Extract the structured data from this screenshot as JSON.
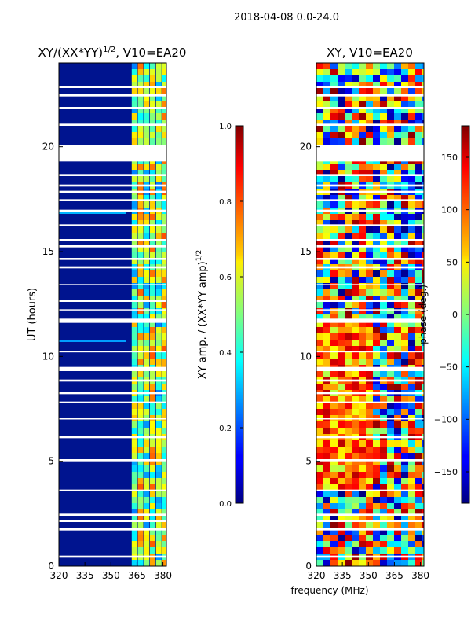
{
  "suptitle": "2018-04-08 0.0-24.0",
  "chart_data": [
    {
      "type": "heatmap",
      "title_main": "XY/(XX*YY)",
      "title_exp": "1/2",
      "title_rest": ", V10=EA20",
      "xlabel": "",
      "ylabel": "UT (hours)",
      "xlim": [
        320,
        382
      ],
      "ylim": [
        0,
        24
      ],
      "xticks": [
        320,
        335,
        350,
        365,
        380
      ],
      "yticks": [
        0,
        5,
        10,
        15,
        20
      ],
      "colormap": "jet",
      "colorbar": {
        "label_main": "XY amp. / (XX*YY amp)",
        "label_exp": "1/2",
        "range": [
          0.0,
          1.0
        ],
        "ticks": [
          0.0,
          0.2,
          0.4,
          0.6,
          0.8,
          1.0
        ],
        "tick_labels": [
          "0.0",
          "0.2",
          "0.4",
          "0.6",
          "0.8",
          "1.0"
        ]
      },
      "flagged_hours": [
        [
          19.3,
          20.1
        ],
        [
          0.4,
          0.5
        ],
        [
          1.7,
          1.8
        ],
        [
          2.1,
          2.2
        ],
        [
          2.4,
          2.5
        ],
        [
          3.6,
          3.65
        ],
        [
          5.0,
          5.1
        ],
        [
          6.1,
          6.2
        ],
        [
          7.0,
          7.05
        ],
        [
          7.8,
          7.85
        ],
        [
          8.2,
          8.3
        ],
        [
          8.8,
          8.9
        ],
        [
          9.3,
          9.5
        ],
        [
          10.2,
          10.25
        ],
        [
          11.6,
          11.8
        ],
        [
          12.2,
          12.25
        ],
        [
          12.6,
          12.7
        ],
        [
          13.4,
          13.45
        ],
        [
          14.2,
          14.3
        ],
        [
          14.6,
          14.7
        ],
        [
          15.2,
          15.3
        ],
        [
          15.5,
          15.6
        ],
        [
          16.2,
          16.3
        ],
        [
          16.9,
          17.0
        ],
        [
          17.4,
          17.5
        ],
        [
          17.8,
          17.9
        ],
        [
          18.1,
          18.2
        ],
        [
          18.6,
          18.7
        ],
        [
          21.0,
          21.1
        ],
        [
          21.8,
          21.9
        ],
        [
          22.4,
          22.5
        ],
        [
          22.8,
          22.9
        ]
      ]
    },
    {
      "type": "heatmap",
      "title": "XY, V10=EA20",
      "xlabel": "frequency (MHz)",
      "ylabel": "",
      "xlim": [
        320,
        382
      ],
      "ylim": [
        0,
        24
      ],
      "xticks": [
        320,
        335,
        350,
        365,
        380
      ],
      "yticks": [
        0,
        5,
        10,
        15,
        20
      ],
      "colormap": "jet",
      "colorbar": {
        "label": "phase (deg.)",
        "range": [
          -180,
          180
        ],
        "ticks": [
          -150,
          -100,
          -50,
          0,
          50,
          100,
          150
        ],
        "tick_labels": [
          "−150",
          "−100",
          "−50",
          "0",
          "50",
          "100",
          "150"
        ]
      },
      "flagged_hours": [
        [
          19.3,
          20.1
        ],
        [
          0.4,
          0.5
        ],
        [
          1.7,
          1.8
        ],
        [
          2.1,
          2.2
        ],
        [
          2.4,
          2.5
        ],
        [
          3.6,
          3.65
        ],
        [
          5.0,
          5.1
        ],
        [
          6.1,
          6.2
        ],
        [
          7.0,
          7.05
        ],
        [
          7.8,
          7.85
        ],
        [
          8.2,
          8.3
        ],
        [
          8.8,
          8.9
        ],
        [
          9.3,
          9.5
        ],
        [
          10.2,
          10.25
        ],
        [
          11.6,
          11.8
        ],
        [
          12.2,
          12.25
        ],
        [
          12.6,
          12.7
        ],
        [
          13.4,
          13.45
        ],
        [
          14.2,
          14.3
        ],
        [
          14.6,
          14.7
        ],
        [
          15.2,
          15.3
        ],
        [
          15.5,
          15.6
        ],
        [
          16.2,
          16.3
        ],
        [
          16.9,
          17.0
        ],
        [
          17.4,
          17.5
        ],
        [
          17.8,
          17.9
        ],
        [
          18.1,
          18.2
        ],
        [
          18.6,
          18.7
        ],
        [
          21.0,
          21.1
        ],
        [
          21.8,
          21.9
        ],
        [
          22.4,
          22.5
        ],
        [
          22.8,
          22.9
        ]
      ]
    }
  ]
}
